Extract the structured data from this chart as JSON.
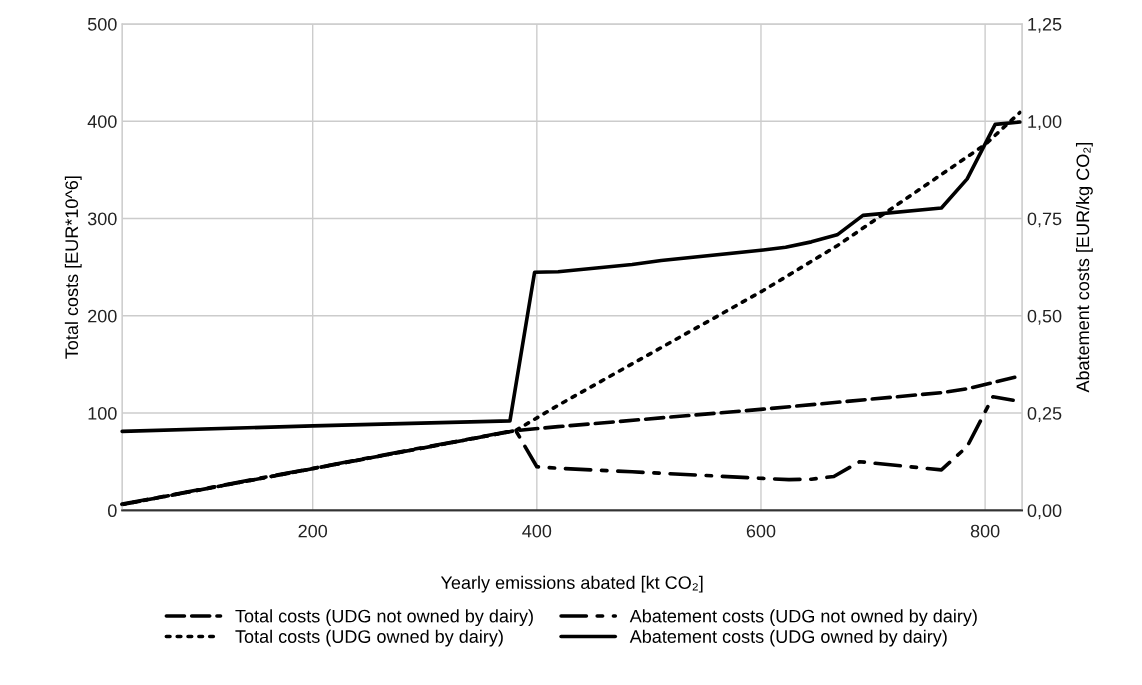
{
  "chart_data": {
    "type": "line",
    "xlabel": "Yearly emissions abated [kt CO₂]",
    "ylabel": "Total costs [EUR*10^6]",
    "y2label": "Abatement costs [EUR/kg CO₂]",
    "xlim": [
      30,
      833
    ],
    "xticks": [
      200,
      400,
      600,
      800
    ],
    "ylim": [
      0,
      500
    ],
    "yticks": [
      0,
      100,
      200,
      300,
      400,
      500
    ],
    "y2lim": [
      0,
      1.25
    ],
    "y2ticks": [
      {
        "value": 0,
        "label": "0,00"
      },
      {
        "value": 0.25,
        "label": "0,25"
      },
      {
        "value": 0.5,
        "label": "0,50"
      },
      {
        "value": 0.75,
        "label": "0,75"
      },
      {
        "value": 1.0,
        "label": "1,00"
      },
      {
        "value": 1.25,
        "label": "1,25"
      }
    ],
    "grid": true,
    "legend": "bottom",
    "marker": "none",
    "series": [
      {
        "name": "Total costs (UDG not owned by dairy)",
        "color": "#000000",
        "line_style": "dashed",
        "x": [
          30,
          381,
          419,
          602,
          761,
          784,
          831
        ],
        "values": [
          6,
          82,
          86,
          104,
          121,
          125,
          138
        ]
      },
      {
        "name": "Abatement costs (UDG not owned by dairy)",
        "color": "#000000",
        "line_style": "dashdot",
        "axis": "y2",
        "x": [
          30,
          381,
          400,
          419,
          485,
          602,
          625,
          645,
          665,
          688,
          761,
          784,
          807,
          825
        ],
        "values": [
          0.016,
          0.206,
          0.112,
          0.108,
          0.099,
          0.082,
          0.079,
          0.08,
          0.087,
          0.125,
          0.104,
          0.164,
          0.292,
          0.283
        ]
      },
      {
        "name": "Total costs (UDG owned by dairy)",
        "color": "#000000",
        "line_style": "dotted",
        "x": [
          30,
          381,
          419,
          602,
          668,
          800,
          831
        ],
        "values": [
          6,
          82,
          108,
          226,
          272,
          376,
          409
        ]
      },
      {
        "name": "Abatement costs (UDG owned by dairy)",
        "color": "#000000",
        "line_style": "solid",
        "axis": "y2",
        "x": [
          30,
          200,
          376,
          398,
          419,
          485,
          511,
          602,
          622,
          645,
          668,
          691,
          761,
          784,
          809,
          831
        ],
        "values": [
          0.203,
          0.217,
          0.23,
          0.612,
          0.613,
          0.632,
          0.642,
          0.669,
          0.676,
          0.69,
          0.708,
          0.758,
          0.777,
          0.852,
          0.992,
          0.998
        ]
      }
    ]
  }
}
